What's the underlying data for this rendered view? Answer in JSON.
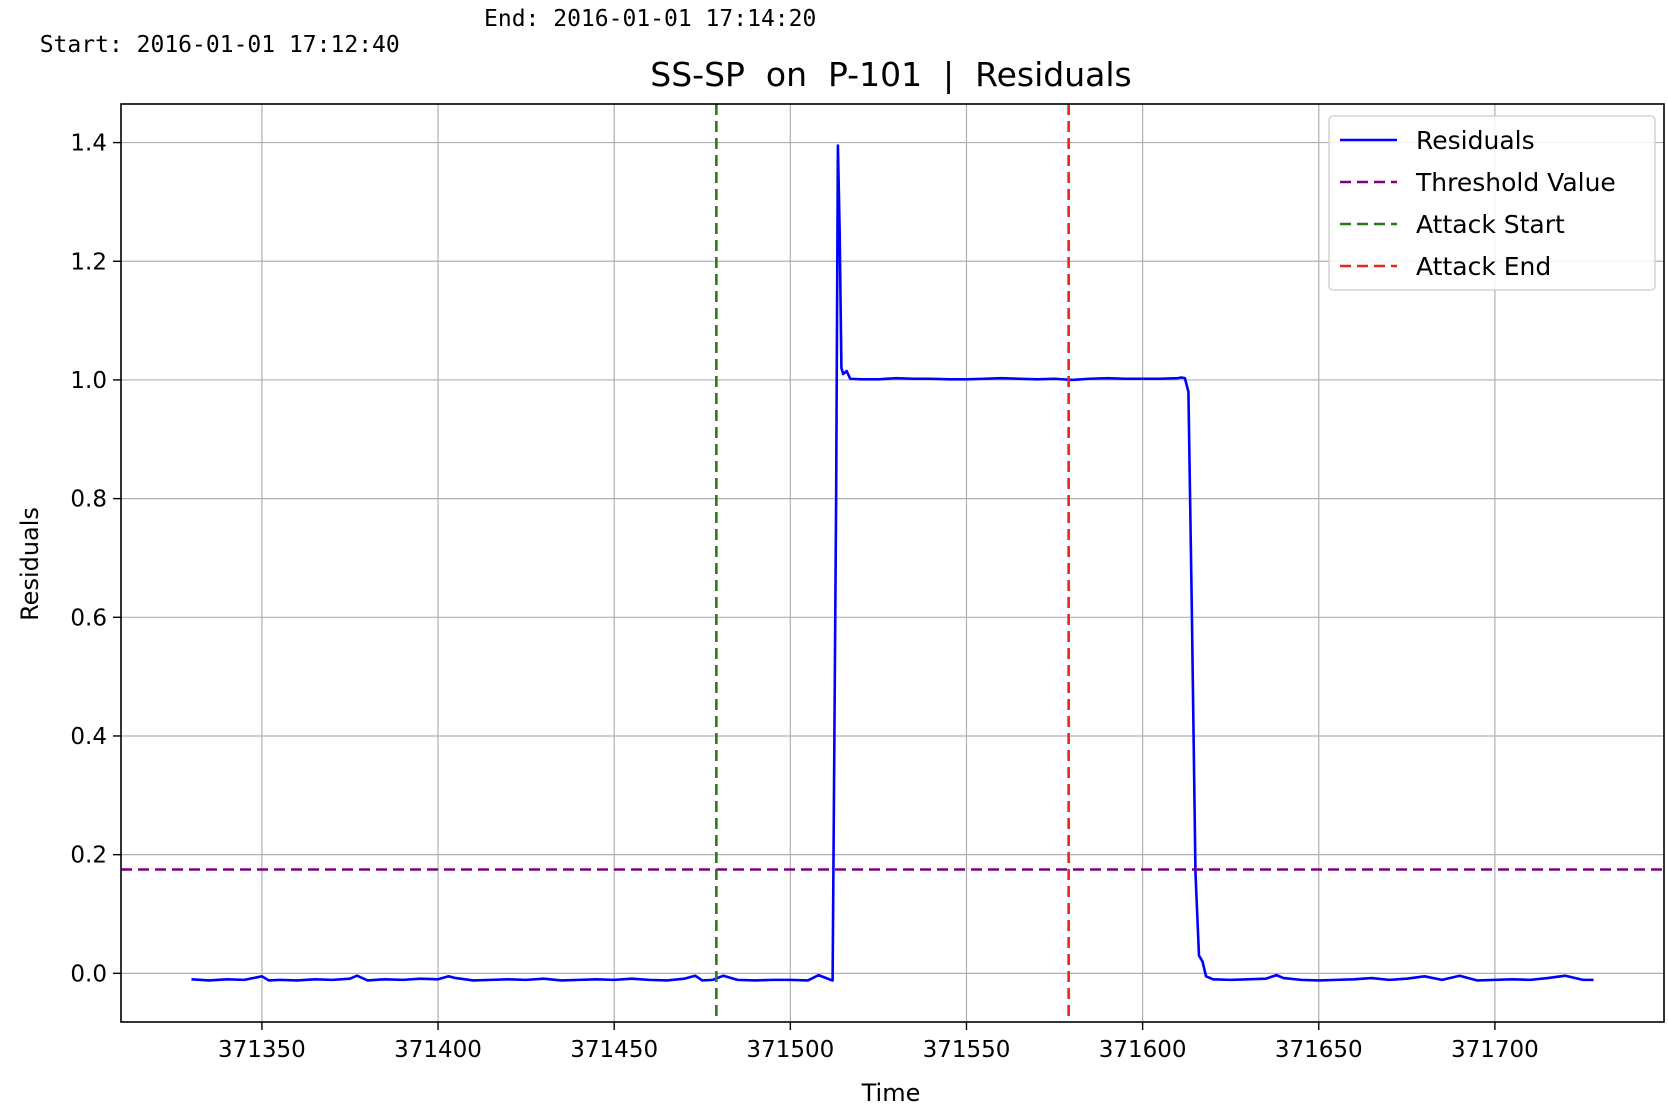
{
  "header": {
    "start_text": "Start: 2016-01-01 17:12:40",
    "end_text": "End: 2016-01-01 17:14:20"
  },
  "chart_data": {
    "type": "line",
    "title": "SS-SP  on  P-101  |  Residuals",
    "xlabel": "Time",
    "ylabel": "Residuals",
    "xlim": [
      371310,
      371748
    ],
    "ylim": [
      -0.082,
      1.465
    ],
    "xticks": [
      371350,
      371400,
      371450,
      371500,
      371550,
      371600,
      371650,
      371700
    ],
    "xtick_labels": [
      "371350",
      "371400",
      "371450",
      "371500",
      "371550",
      "371600",
      "371650",
      "371700"
    ],
    "yticks": [
      0.0,
      0.2,
      0.4,
      0.6,
      0.8,
      1.0,
      1.2,
      1.4
    ],
    "ytick_labels": [
      "0.0",
      "0.2",
      "0.4",
      "0.6",
      "0.8",
      "1.0",
      "1.2",
      "1.4"
    ],
    "grid": true,
    "legend_position": "top-right",
    "series": [
      {
        "name": "Residuals",
        "color": "#0000ff",
        "style": "solid",
        "x": [
          371330,
          371335,
          371340,
          371345,
          371350,
          371352,
          371355,
          371360,
          371365,
          371370,
          371375,
          371377,
          371380,
          371385,
          371390,
          371395,
          371400,
          371403,
          371405,
          371410,
          371415,
          371420,
          371425,
          371430,
          371435,
          371440,
          371445,
          371450,
          371455,
          371460,
          371465,
          371470,
          371473,
          371475,
          371478,
          371481,
          371485,
          371490,
          371495,
          371500,
          371505,
          371508,
          371511,
          371512,
          371513,
          371513.5,
          371514,
          371514.5,
          371515,
          371516,
          371517,
          371520,
          371525,
          371530,
          371535,
          371540,
          371545,
          371550,
          371555,
          371560,
          371565,
          371570,
          371575,
          371580,
          371585,
          371590,
          371595,
          371600,
          371605,
          371610,
          371611,
          371612,
          371613,
          371614,
          371615,
          371616,
          371617,
          371618,
          371620,
          371625,
          371630,
          371635,
          371638,
          371640,
          371645,
          371650,
          371655,
          371660,
          371665,
          371670,
          371675,
          371680,
          371685,
          371690,
          371695,
          371700,
          371705,
          371710,
          371715,
          371720,
          371725,
          371728
        ],
        "y": [
          -0.01,
          -0.012,
          -0.01,
          -0.011,
          -0.005,
          -0.012,
          -0.011,
          -0.012,
          -0.01,
          -0.011,
          -0.009,
          -0.004,
          -0.012,
          -0.01,
          -0.011,
          -0.009,
          -0.01,
          -0.005,
          -0.008,
          -0.012,
          -0.011,
          -0.01,
          -0.011,
          -0.009,
          -0.012,
          -0.011,
          -0.01,
          -0.011,
          -0.009,
          -0.011,
          -0.012,
          -0.009,
          -0.004,
          -0.012,
          -0.011,
          -0.004,
          -0.011,
          -0.012,
          -0.011,
          -0.011,
          -0.012,
          -0.003,
          -0.01,
          -0.012,
          0.8,
          1.395,
          1.25,
          1.02,
          1.01,
          1.015,
          1.002,
          1.001,
          1.001,
          1.003,
          1.002,
          1.002,
          1.001,
          1.001,
          1.002,
          1.003,
          1.002,
          1.001,
          1.002,
          1.0,
          1.002,
          1.003,
          1.002,
          1.002,
          1.002,
          1.003,
          1.004,
          1.003,
          0.98,
          0.6,
          0.17,
          0.03,
          0.02,
          -0.005,
          -0.01,
          -0.011,
          -0.01,
          -0.009,
          -0.003,
          -0.008,
          -0.011,
          -0.012,
          -0.011,
          -0.01,
          -0.008,
          -0.011,
          -0.009,
          -0.005,
          -0.011,
          -0.004,
          -0.012,
          -0.011,
          -0.01,
          -0.011,
          -0.008,
          -0.004,
          -0.011,
          -0.011
        ]
      },
      {
        "name": "Threshold Value",
        "color": "#800080",
        "style": "dashed",
        "y_const": 0.175
      },
      {
        "name": "Attack Start",
        "color": "#2a7a1a",
        "style": "dashed",
        "x_const": 371479
      },
      {
        "name": "Attack End",
        "color": "#e8261e",
        "style": "dashed",
        "x_const": 371579
      }
    ]
  }
}
